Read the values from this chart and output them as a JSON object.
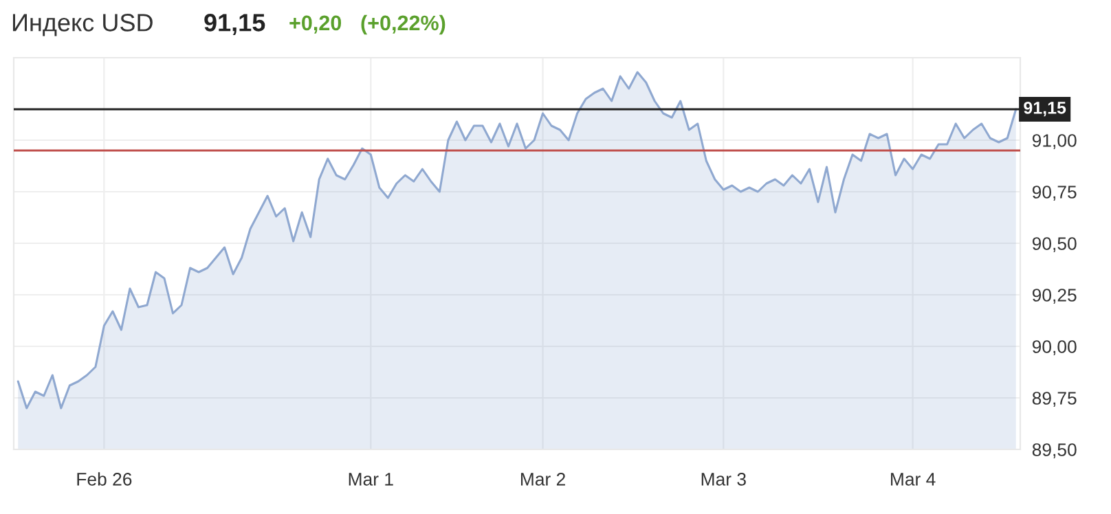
{
  "chart_data": {
    "type": "area",
    "title": "Индекс USD",
    "annotations": [
      "91,15",
      "+0,20",
      "(+0,22%)"
    ],
    "categories": [
      null,
      null,
      null,
      null,
      null,
      null,
      null,
      null,
      null,
      null,
      "Feb 26",
      null,
      null,
      null,
      null,
      null,
      null,
      null,
      null,
      null,
      null,
      null,
      null,
      null,
      null,
      null,
      null,
      null,
      null,
      null,
      null,
      null,
      null,
      null,
      null,
      null,
      null,
      null,
      null,
      null,
      null,
      "Mar 1",
      null,
      null,
      null,
      null,
      null,
      null,
      null,
      null,
      null,
      null,
      null,
      null,
      null,
      null,
      null,
      null,
      null,
      null,
      null,
      "Mar 2",
      null,
      null,
      null,
      null,
      null,
      null,
      null,
      null,
      null,
      null,
      null,
      null,
      null,
      null,
      null,
      null,
      null,
      null,
      null,
      null,
      "Mar 3",
      null,
      null,
      null,
      null,
      null,
      null,
      null,
      null,
      null,
      null,
      null,
      null,
      null,
      null,
      null,
      null,
      null,
      null,
      null,
      null,
      null,
      "Mar 4",
      null,
      null,
      null,
      null,
      null,
      null,
      null,
      null,
      null,
      null,
      null,
      null
    ],
    "series": [
      {
        "color": "#8fa8d0",
        "values": [
          89.83,
          89.7,
          89.78,
          89.76,
          89.86,
          89.7,
          89.81,
          89.83,
          89.86,
          89.9,
          90.1,
          90.17,
          90.08,
          90.28,
          90.19,
          90.2,
          90.36,
          90.33,
          90.16,
          90.2,
          90.38,
          90.36,
          90.38,
          90.43,
          90.48,
          90.35,
          90.43,
          90.57,
          90.65,
          90.73,
          90.63,
          90.67,
          90.51,
          90.65,
          90.53,
          90.81,
          90.91,
          90.83,
          90.81,
          90.88,
          90.96,
          90.93,
          90.77,
          90.72,
          90.79,
          90.83,
          90.8,
          90.86,
          90.8,
          90.75,
          91.0,
          91.09,
          91.0,
          91.07,
          91.07,
          90.99,
          91.08,
          90.97,
          91.08,
          90.96,
          91.0,
          91.13,
          91.07,
          91.05,
          91.0,
          91.13,
          91.2,
          91.23,
          91.25,
          91.19,
          91.31,
          91.25,
          91.33,
          91.28,
          91.19,
          91.13,
          91.11,
          91.19,
          91.05,
          91.08,
          90.9,
          90.81,
          90.76,
          90.78,
          90.75,
          90.77,
          90.75,
          90.79,
          90.81,
          90.78,
          90.83,
          90.79,
          90.86,
          90.7,
          90.87,
          90.65,
          90.81,
          90.93,
          90.9,
          91.03,
          91.01,
          91.03,
          90.83,
          90.91,
          90.86,
          90.93,
          90.91,
          90.98,
          90.98,
          91.08,
          91.01,
          91.05,
          91.08,
          91.01,
          90.99,
          91.01,
          91.15
        ]
      }
    ],
    "ylim": [
      89.5,
      91.4
    ],
    "yticks": [
      {
        "value": 89.5,
        "label": "89,50"
      },
      {
        "value": 89.75,
        "label": "89,75"
      },
      {
        "value": 90.0,
        "label": "90,00"
      },
      {
        "value": 90.25,
        "label": "90,25"
      },
      {
        "value": 90.5,
        "label": "90,50"
      },
      {
        "value": 90.75,
        "label": "90,75"
      },
      {
        "value": 91.0,
        "label": "91,00"
      }
    ],
    "ref_lines": [
      {
        "axis": "y",
        "value": 91.15,
        "label": "91,15",
        "color": "#222222"
      },
      {
        "axis": "y",
        "value": 90.95,
        "color": "#c0504d"
      }
    ],
    "grid": true,
    "legend": false,
    "marker": "none",
    "line_style": "solid"
  }
}
